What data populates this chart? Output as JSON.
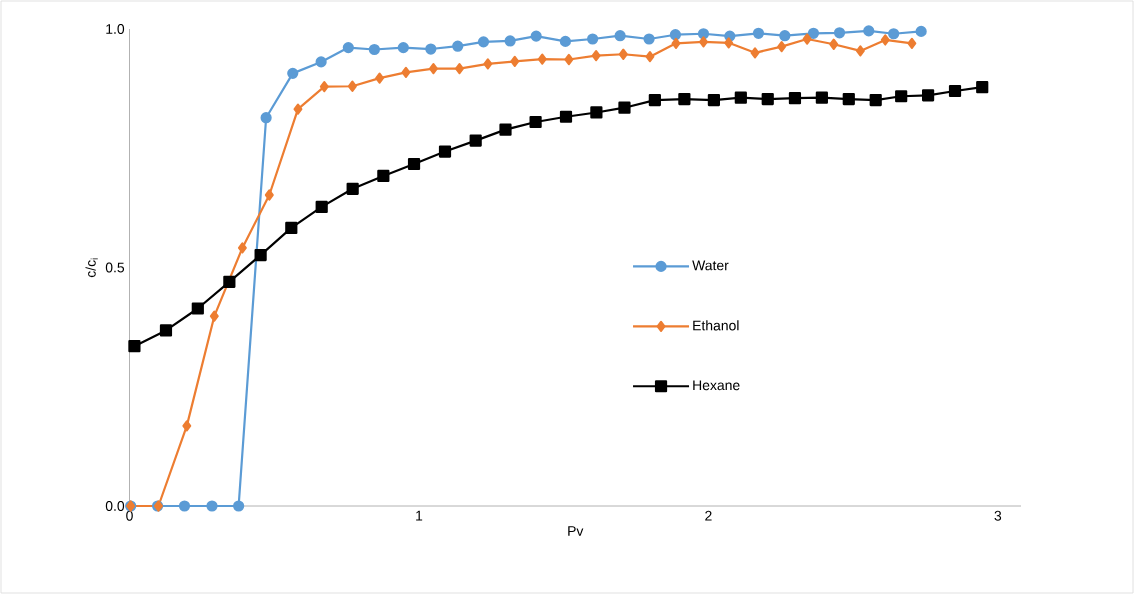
{
  "chart_data": {
    "type": "line",
    "xlabel": "Pv",
    "ylabel": "c/c$_{i}$",
    "xlim": [
      0,
      3.08
    ],
    "xticks": [
      0,
      1,
      2,
      3
    ],
    "ylim": [
      0,
      1
    ],
    "yticks": [
      {
        "value": 0,
        "label": "0.0"
      },
      {
        "value": 0.5,
        "label": "0.5"
      },
      {
        "value": 1,
        "label": "1.0"
      }
    ],
    "grid": false,
    "legend": "center",
    "line_style": "solid",
    "series": [
      {
        "name": "Water",
        "color": "#5b9bd5",
        "marker": "circle",
        "x": [
          0.004,
          0.097,
          0.19,
          0.285,
          0.377,
          0.472,
          0.564,
          0.662,
          0.756,
          0.846,
          0.946,
          1.041,
          1.134,
          1.223,
          1.315,
          1.405,
          1.506,
          1.6,
          1.695,
          1.795,
          1.886,
          1.983,
          2.074,
          2.173,
          2.264,
          2.363,
          2.453,
          2.554,
          2.64,
          2.735
        ],
        "values": [
          0,
          0,
          0,
          0,
          0,
          0.814,
          0.907,
          0.931,
          0.961,
          0.957,
          0.961,
          0.958,
          0.964,
          0.973,
          0.975,
          0.985,
          0.974,
          0.979,
          0.986,
          0.979,
          0.988,
          0.99,
          0.985,
          0.991,
          0.986,
          0.991,
          0.992,
          0.996,
          0.99,
          0.995
        ]
      },
      {
        "name": "Ethanol",
        "color": "#ed7d31",
        "marker": "diamond",
        "x": [
          0.004,
          0.1,
          0.198,
          0.293,
          0.39,
          0.483,
          0.582,
          0.673,
          0.77,
          0.864,
          0.955,
          1.05,
          1.14,
          1.238,
          1.331,
          1.426,
          1.518,
          1.612,
          1.706,
          1.798,
          1.888,
          1.983,
          2.07,
          2.161,
          2.253,
          2.341,
          2.433,
          2.525,
          2.611,
          2.703
        ],
        "values": [
          0,
          0,
          0.168,
          0.398,
          0.541,
          0.652,
          0.832,
          0.879,
          0.88,
          0.897,
          0.909,
          0.917,
          0.917,
          0.927,
          0.932,
          0.937,
          0.936,
          0.944,
          0.947,
          0.942,
          0.97,
          0.973,
          0.971,
          0.95,
          0.963,
          0.979,
          0.968,
          0.954,
          0.977,
          0.97
        ]
      },
      {
        "name": "Hexane",
        "color": "#000000",
        "marker": "square",
        "x": [
          0.017,
          0.126,
          0.236,
          0.345,
          0.453,
          0.559,
          0.664,
          0.771,
          0.877,
          0.983,
          1.09,
          1.196,
          1.299,
          1.403,
          1.508,
          1.613,
          1.71,
          1.815,
          1.917,
          2.019,
          2.112,
          2.205,
          2.299,
          2.392,
          2.485,
          2.578,
          2.666,
          2.759,
          2.852,
          2.946
        ],
        "values": [
          0.335,
          0.368,
          0.414,
          0.47,
          0.526,
          0.583,
          0.627,
          0.665,
          0.692,
          0.717,
          0.743,
          0.766,
          0.789,
          0.805,
          0.816,
          0.825,
          0.835,
          0.851,
          0.853,
          0.851,
          0.856,
          0.853,
          0.855,
          0.856,
          0.853,
          0.851,
          0.859,
          0.861,
          0.87,
          0.878
        ]
      }
    ]
  }
}
